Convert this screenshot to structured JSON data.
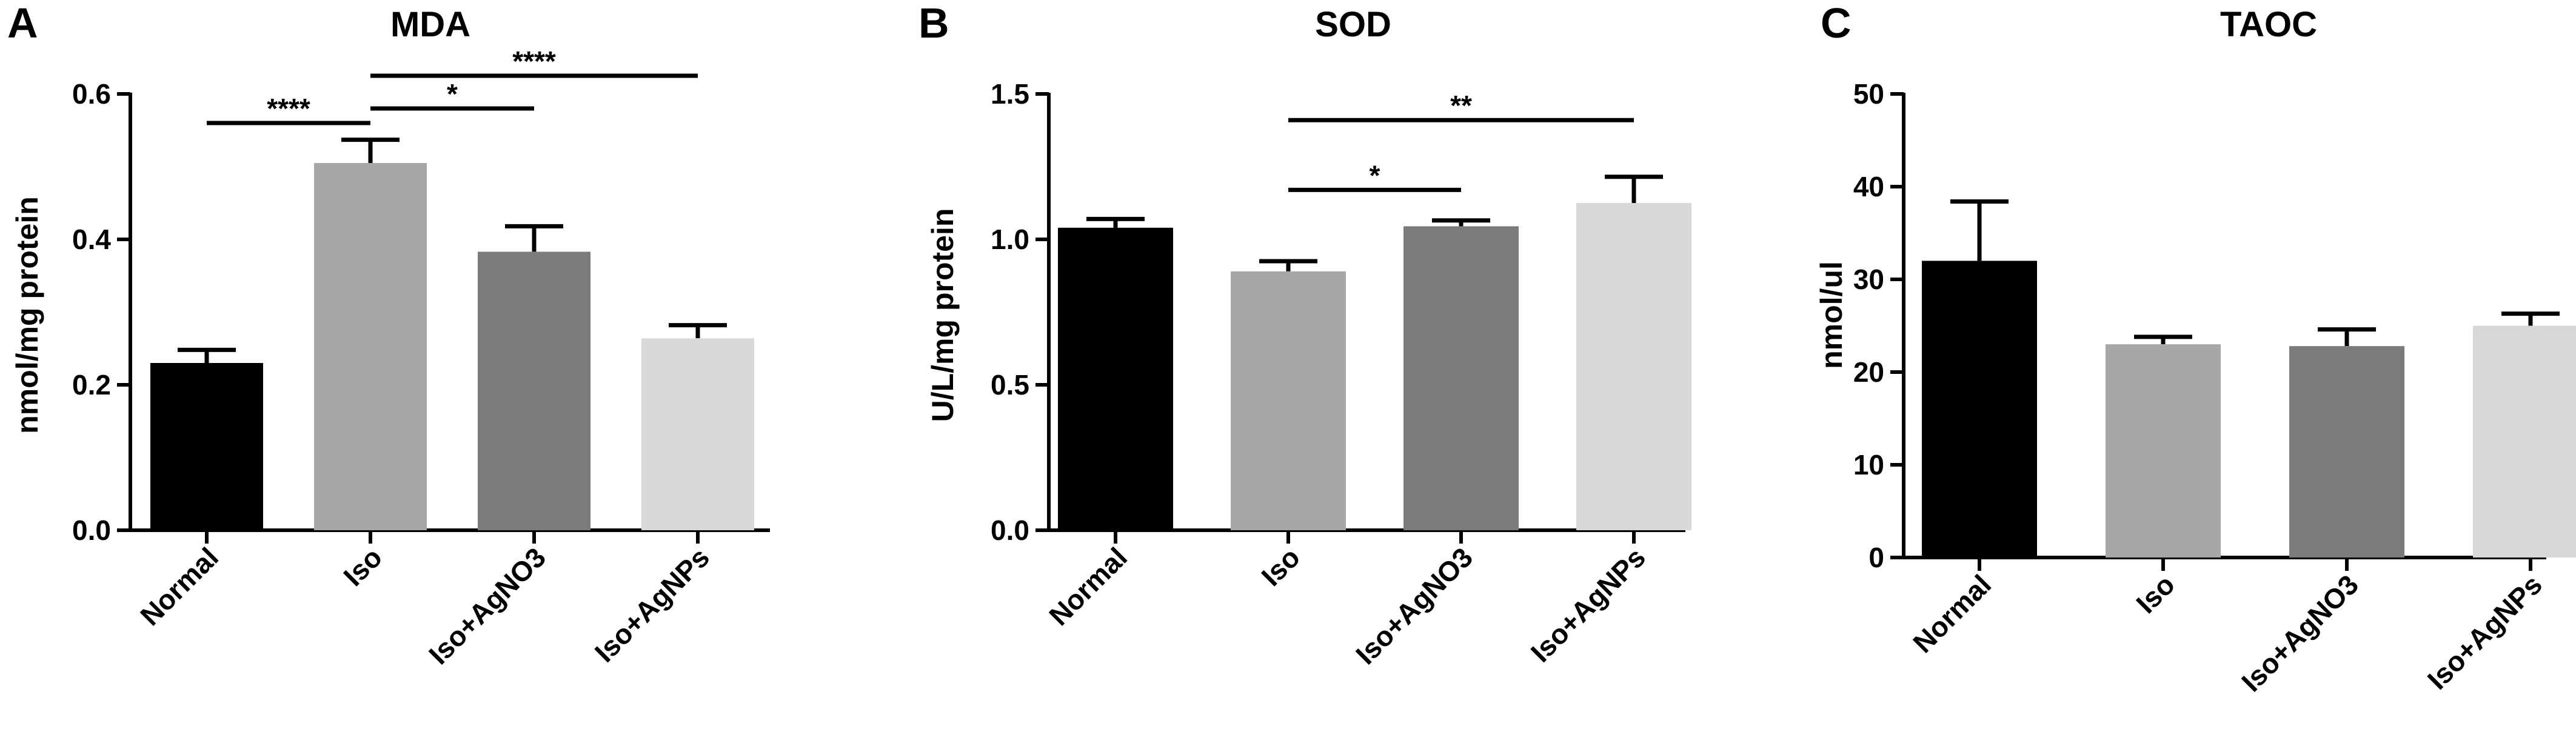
{
  "chart_data": [
    {
      "type": "bar",
      "panel": "A",
      "title": "MDA",
      "ylabel": "nmol/mg protein",
      "xlabel": "",
      "categories": [
        "Normal",
        "Iso",
        "Iso+AgNO3",
        "Iso+AgNPs"
      ],
      "values": [
        0.23,
        0.505,
        0.383,
        0.264
      ],
      "errors": [
        0.018,
        0.032,
        0.035,
        0.018
      ],
      "ylim": [
        0,
        0.6
      ],
      "yticks": [
        "0.0",
        "0.2",
        "0.4",
        "0.6"
      ],
      "bar_colors": [
        "#000000",
        "#a7a7a9",
        "#7b7b7b",
        "#d8d8d8"
      ],
      "grid": false,
      "significance": [
        {
          "from": 0,
          "to": 1,
          "y": 0.56,
          "label": "****"
        },
        {
          "from": 1,
          "to": 2,
          "y": 0.58,
          "label": "*"
        },
        {
          "from": 1,
          "to": 3,
          "y": 0.625,
          "label": "****"
        }
      ]
    },
    {
      "type": "bar",
      "panel": "B",
      "title": "SOD",
      "ylabel": "U/L/mg protein",
      "xlabel": "",
      "categories": [
        "Normal",
        "Iso",
        "Iso+AgNO3",
        "Iso+AgNPs"
      ],
      "values": [
        1.04,
        0.89,
        1.045,
        1.125
      ],
      "errors": [
        0.03,
        0.035,
        0.02,
        0.09
      ],
      "ylim": [
        0,
        1.5
      ],
      "yticks": [
        "0.0",
        "0.5",
        "1.0",
        "1.5"
      ],
      "bar_colors": [
        "#000000",
        "#a7a7a9",
        "#7b7b7b",
        "#d8d8d8"
      ],
      "grid": false,
      "significance": [
        {
          "from": 1,
          "to": 2,
          "y": 1.17,
          "label": "*"
        },
        {
          "from": 1,
          "to": 3,
          "y": 1.41,
          "label": "**"
        }
      ]
    },
    {
      "type": "bar",
      "panel": "C",
      "title": "TAOC",
      "ylabel": "nmol/ul",
      "xlabel": "",
      "categories": [
        "Normal",
        "Iso",
        "Iso+AgNO3",
        "Iso+AgNPs"
      ],
      "values": [
        32,
        23,
        22.8,
        25
      ],
      "errors": [
        6.4,
        0.8,
        1.8,
        1.3
      ],
      "ylim": [
        0,
        50
      ],
      "yticks": [
        "0",
        "10",
        "20",
        "30",
        "40",
        "50"
      ],
      "bar_colors": [
        "#000000",
        "#a7a7a9",
        "#7b7b7b",
        "#d8d8d8"
      ],
      "grid": false,
      "significance": []
    }
  ]
}
